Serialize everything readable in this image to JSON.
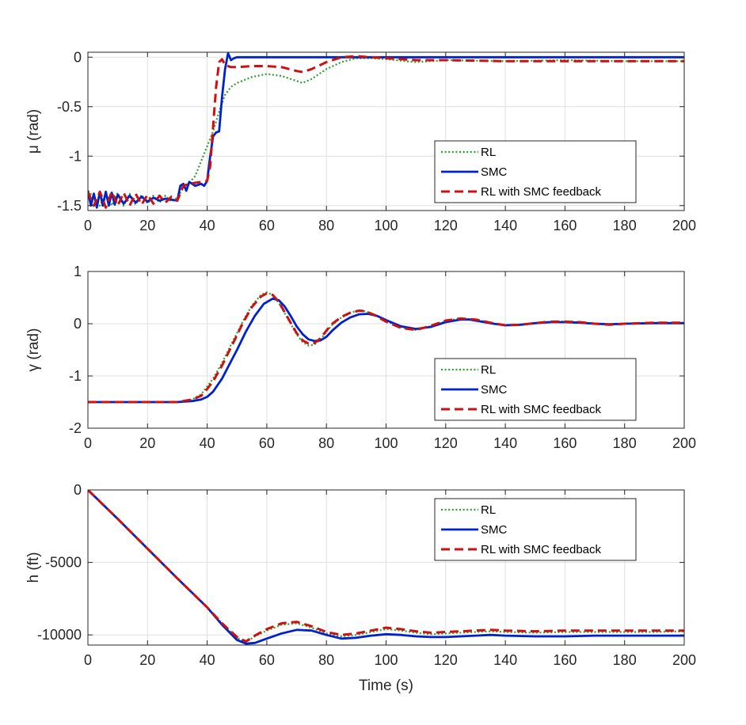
{
  "chart_data": [
    {
      "type": "line",
      "ylabel": "μ (rad)",
      "xlabel": "",
      "xlim": [
        0,
        200
      ],
      "ylim": [
        -1.55,
        0.05
      ],
      "xticks": [
        0,
        20,
        40,
        60,
        80,
        100,
        120,
        140,
        160,
        180,
        200
      ],
      "xtick_labels": [
        "0",
        "20",
        "40",
        "60",
        "80",
        "100",
        "120",
        "140",
        "160",
        "180",
        "200"
      ],
      "yticks": [
        -1.5,
        -1,
        -0.5,
        0
      ],
      "ytick_labels": [
        "-1.5",
        "-1",
        "-0.5",
        "0"
      ],
      "grid": true,
      "legend_position": "bottom-right",
      "series": [
        {
          "name": "RL",
          "style": "dotted",
          "color": "#2ca02c",
          "x": [
            0,
            2,
            4,
            6,
            8,
            10,
            12,
            14,
            16,
            18,
            20,
            22,
            24,
            26,
            28,
            30,
            32,
            34,
            36,
            38,
            40,
            42,
            44,
            46,
            48,
            50,
            55,
            60,
            65,
            70,
            72,
            75,
            80,
            85,
            90,
            95,
            100,
            110,
            120,
            140,
            160,
            180,
            200
          ],
          "y": [
            -1.35,
            -1.42,
            -1.5,
            -1.38,
            -1.5,
            -1.37,
            -1.5,
            -1.38,
            -1.49,
            -1.39,
            -1.48,
            -1.4,
            -1.47,
            -1.4,
            -1.46,
            -1.42,
            -1.32,
            -1.27,
            -1.2,
            -1.05,
            -0.9,
            -0.75,
            -0.55,
            -0.38,
            -0.3,
            -0.26,
            -0.2,
            -0.17,
            -0.19,
            -0.24,
            -0.26,
            -0.22,
            -0.12,
            -0.05,
            -0.01,
            -0.01,
            -0.02,
            -0.05,
            -0.03,
            -0.04,
            -0.03,
            -0.04,
            -0.04
          ]
        },
        {
          "name": "SMC",
          "style": "solid",
          "color": "#0022cc",
          "x": [
            0,
            1,
            2,
            3,
            4,
            5,
            6,
            7,
            8,
            9,
            10,
            12,
            14,
            16,
            18,
            20,
            22,
            24,
            26,
            28,
            30,
            31,
            32,
            33,
            34,
            36,
            38,
            39,
            40,
            41,
            42,
            43,
            44,
            45,
            46,
            47,
            48,
            49,
            50,
            55,
            60,
            80,
            100,
            120,
            140,
            160,
            180,
            200
          ],
          "y": [
            -1.35,
            -1.5,
            -1.38,
            -1.52,
            -1.36,
            -1.5,
            -1.36,
            -1.5,
            -1.37,
            -1.49,
            -1.39,
            -1.48,
            -1.4,
            -1.47,
            -1.41,
            -1.46,
            -1.42,
            -1.45,
            -1.43,
            -1.44,
            -1.45,
            -1.3,
            -1.28,
            -1.35,
            -1.26,
            -1.3,
            -1.28,
            -1.3,
            -1.25,
            -1.0,
            -0.8,
            -0.76,
            -0.75,
            -0.4,
            -0.12,
            0.04,
            -0.03,
            -0.01,
            0.0,
            0.0,
            0.0,
            0.0,
            0.0,
            0.0,
            0.0,
            0.0,
            0.0,
            0.0
          ]
        },
        {
          "name": "RL with SMC feedback",
          "style": "dashed",
          "color": "#cc1111",
          "x": [
            0,
            2,
            4,
            6,
            8,
            10,
            12,
            14,
            16,
            18,
            20,
            22,
            24,
            26,
            28,
            30,
            32,
            34,
            36,
            38,
            40,
            41,
            42,
            43,
            44,
            45,
            46,
            48,
            50,
            55,
            60,
            65,
            70,
            72,
            75,
            80,
            85,
            90,
            95,
            100,
            110,
            120,
            140,
            160,
            180,
            200
          ],
          "y": [
            -1.36,
            -1.5,
            -1.36,
            -1.52,
            -1.36,
            -1.5,
            -1.37,
            -1.5,
            -1.38,
            -1.49,
            -1.39,
            -1.48,
            -1.4,
            -1.47,
            -1.41,
            -1.45,
            -1.3,
            -1.28,
            -1.27,
            -1.26,
            -1.25,
            -1.1,
            -0.7,
            -0.3,
            -0.05,
            -0.02,
            -0.08,
            -0.1,
            -0.1,
            -0.09,
            -0.09,
            -0.1,
            -0.14,
            -0.15,
            -0.12,
            -0.05,
            0.0,
            0.01,
            0.0,
            -0.01,
            -0.03,
            -0.03,
            -0.04,
            -0.04,
            -0.04,
            -0.04
          ]
        }
      ]
    },
    {
      "type": "line",
      "ylabel": "γ (rad)",
      "xlabel": "",
      "xlim": [
        0,
        200
      ],
      "ylim": [
        -2,
        1
      ],
      "xticks": [
        0,
        20,
        40,
        60,
        80,
        100,
        120,
        140,
        160,
        180,
        200
      ],
      "xtick_labels": [
        "0",
        "20",
        "40",
        "60",
        "80",
        "100",
        "120",
        "140",
        "160",
        "180",
        "200"
      ],
      "yticks": [
        -2,
        -1,
        0,
        1
      ],
      "ytick_labels": [
        "-2",
        "-1",
        "0",
        "1"
      ],
      "grid": true,
      "legend_position": "bottom-right",
      "series": [
        {
          "name": "RL",
          "style": "dotted",
          "color": "#2ca02c",
          "x": [
            0,
            10,
            20,
            30,
            35,
            38,
            40,
            42,
            45,
            48,
            50,
            52,
            55,
            58,
            60,
            62,
            64,
            66,
            68,
            70,
            72,
            74,
            76,
            78,
            80,
            82,
            85,
            88,
            90,
            93,
            96,
            100,
            105,
            110,
            115,
            120,
            125,
            130,
            135,
            140,
            145,
            150,
            155,
            160,
            165,
            170,
            175,
            180,
            190,
            200
          ],
          "y": [
            -1.5,
            -1.5,
            -1.5,
            -1.5,
            -1.45,
            -1.35,
            -1.2,
            -1.05,
            -0.75,
            -0.4,
            -0.18,
            0.05,
            0.35,
            0.55,
            0.6,
            0.55,
            0.4,
            0.2,
            0.0,
            -0.2,
            -0.35,
            -0.42,
            -0.4,
            -0.3,
            -0.15,
            -0.02,
            0.12,
            0.2,
            0.25,
            0.24,
            0.18,
            0.05,
            -0.07,
            -0.12,
            -0.05,
            0.05,
            0.1,
            0.08,
            0.02,
            -0.03,
            -0.02,
            0.01,
            0.04,
            0.04,
            0.03,
            0.0,
            -0.02,
            0.0,
            0.02,
            0.02
          ]
        },
        {
          "name": "SMC",
          "style": "solid",
          "color": "#0022cc",
          "x": [
            0,
            10,
            20,
            30,
            35,
            38,
            40,
            42,
            45,
            48,
            50,
            53,
            56,
            59,
            62,
            64,
            66,
            68,
            70,
            72,
            74,
            76,
            78,
            80,
            82,
            85,
            88,
            91,
            94,
            97,
            100,
            105,
            110,
            115,
            120,
            125,
            128,
            132,
            136,
            140,
            145,
            150,
            155,
            160,
            165,
            170,
            175,
            180,
            190,
            200
          ],
          "y": [
            -1.5,
            -1.5,
            -1.5,
            -1.5,
            -1.48,
            -1.45,
            -1.4,
            -1.3,
            -1.05,
            -0.72,
            -0.5,
            -0.15,
            0.15,
            0.38,
            0.48,
            0.45,
            0.33,
            0.15,
            -0.05,
            -0.2,
            -0.3,
            -0.33,
            -0.32,
            -0.25,
            -0.13,
            0.02,
            0.12,
            0.18,
            0.19,
            0.15,
            0.07,
            -0.05,
            -0.1,
            -0.06,
            0.03,
            0.08,
            0.08,
            0.04,
            0.0,
            -0.03,
            -0.02,
            0.01,
            0.03,
            0.03,
            0.02,
            0.0,
            -0.01,
            0.0,
            0.01,
            0.01
          ]
        },
        {
          "name": "RL with SMC feedback",
          "style": "dashed",
          "color": "#cc1111",
          "x": [
            0,
            10,
            20,
            30,
            35,
            38,
            40,
            42,
            45,
            48,
            50,
            52,
            55,
            58,
            60,
            62,
            64,
            66,
            68,
            70,
            72,
            74,
            76,
            78,
            80,
            82,
            85,
            88,
            91,
            93,
            96,
            100,
            105,
            110,
            115,
            120,
            125,
            130,
            135,
            140,
            145,
            150,
            155,
            160,
            165,
            170,
            175,
            180,
            190,
            200
          ],
          "y": [
            -1.5,
            -1.5,
            -1.5,
            -1.5,
            -1.45,
            -1.38,
            -1.25,
            -1.1,
            -0.8,
            -0.45,
            -0.22,
            0.02,
            0.32,
            0.52,
            0.58,
            0.55,
            0.42,
            0.22,
            0.02,
            -0.18,
            -0.32,
            -0.38,
            -0.37,
            -0.28,
            -0.13,
            0.0,
            0.13,
            0.21,
            0.25,
            0.24,
            0.17,
            0.04,
            -0.08,
            -0.12,
            -0.04,
            0.06,
            0.1,
            0.08,
            0.02,
            -0.03,
            -0.02,
            0.01,
            0.04,
            0.04,
            0.03,
            0.0,
            -0.02,
            0.0,
            0.02,
            0.02
          ]
        }
      ]
    },
    {
      "type": "line",
      "ylabel": "h (ft)",
      "xlabel": "Time (s)",
      "xlim": [
        0,
        200
      ],
      "ylim": [
        -10700,
        0
      ],
      "xticks": [
        0,
        20,
        40,
        60,
        80,
        100,
        120,
        140,
        160,
        180,
        200
      ],
      "xtick_labels": [
        "0",
        "20",
        "40",
        "60",
        "80",
        "100",
        "120",
        "140",
        "160",
        "180",
        "200"
      ],
      "yticks": [
        -10000,
        -5000,
        0
      ],
      "ytick_labels": [
        "-10000",
        "-5000",
        "0"
      ],
      "grid": true,
      "legend_position": "top-right",
      "series": [
        {
          "name": "RL",
          "style": "dotted",
          "color": "#2ca02c",
          "x": [
            0,
            10,
            20,
            30,
            40,
            45,
            50,
            53,
            56,
            60,
            65,
            70,
            75,
            80,
            85,
            90,
            95,
            100,
            105,
            110,
            115,
            120,
            130,
            135,
            140,
            150,
            160,
            170,
            180,
            190,
            200
          ],
          "y": [
            0,
            -2000,
            -4050,
            -6100,
            -8100,
            -9200,
            -10200,
            -10500,
            -10100,
            -9700,
            -9300,
            -9200,
            -9500,
            -9900,
            -10100,
            -10000,
            -9800,
            -9600,
            -9700,
            -9850,
            -9950,
            -9900,
            -9800,
            -9750,
            -9800,
            -9850,
            -9800,
            -9800,
            -9800,
            -9800,
            -9750
          ]
        },
        {
          "name": "SMC",
          "style": "solid",
          "color": "#0022cc",
          "x": [
            0,
            10,
            20,
            30,
            40,
            45,
            50,
            53,
            56,
            60,
            65,
            70,
            75,
            80,
            85,
            90,
            95,
            100,
            105,
            110,
            115,
            120,
            130,
            135,
            140,
            150,
            160,
            170,
            180,
            190,
            200
          ],
          "y": [
            0,
            -2000,
            -4050,
            -6100,
            -8100,
            -9300,
            -10350,
            -10600,
            -10550,
            -10250,
            -9900,
            -9650,
            -9700,
            -10000,
            -10250,
            -10200,
            -10050,
            -9950,
            -10000,
            -10100,
            -10150,
            -10150,
            -10050,
            -10000,
            -10050,
            -10100,
            -10100,
            -10050,
            -10050,
            -10050,
            -10050
          ]
        },
        {
          "name": "RL with SMC feedback",
          "style": "dashed",
          "color": "#cc1111",
          "x": [
            0,
            10,
            20,
            30,
            40,
            45,
            50,
            53,
            56,
            60,
            65,
            70,
            75,
            80,
            85,
            90,
            95,
            100,
            105,
            110,
            115,
            120,
            130,
            135,
            140,
            150,
            160,
            170,
            180,
            190,
            200
          ],
          "y": [
            0,
            -2000,
            -4050,
            -6100,
            -8100,
            -9200,
            -10150,
            -10450,
            -10050,
            -9600,
            -9200,
            -9100,
            -9400,
            -9800,
            -10000,
            -9900,
            -9700,
            -9500,
            -9600,
            -9750,
            -9850,
            -9800,
            -9700,
            -9650,
            -9700,
            -9750,
            -9700,
            -9700,
            -9700,
            -9700,
            -9700
          ]
        }
      ]
    }
  ]
}
